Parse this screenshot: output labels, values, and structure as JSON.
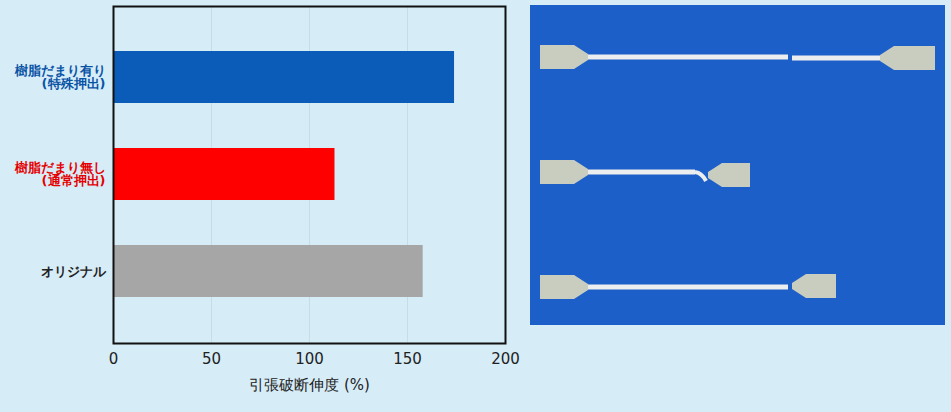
{
  "chart_data": {
    "type": "bar",
    "orientation": "horizontal",
    "categories": [
      "樹脂だまり有り(特殊押出)",
      "樹脂だまり無し(通常押出)",
      "オリジナル"
    ],
    "values": [
      174,
      113,
      158
    ],
    "colors": [
      "#0a5cb8",
      "#ff0000",
      "#a6a6a6"
    ],
    "xlabel": "引張破断伸度 (%)",
    "xlim": [
      0,
      200
    ],
    "xticks": [
      0,
      50,
      100,
      150,
      200
    ],
    "grid": true
  }
}
